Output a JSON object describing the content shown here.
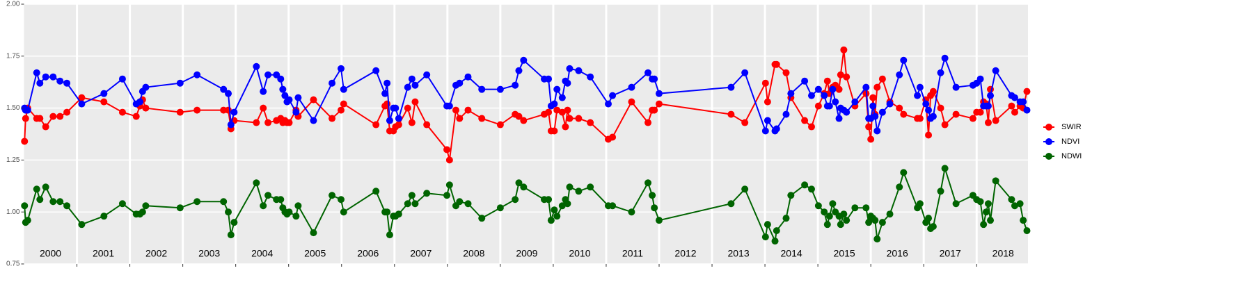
{
  "chart_data": {
    "type": "line",
    "x": [
      2000.01,
      2000.03,
      2000.07,
      2000.24,
      2000.3,
      2000.41,
      2000.55,
      2000.68,
      2000.81,
      2001.09,
      2001.51,
      2001.86,
      2002.12,
      2002.19,
      2002.24,
      2002.3,
      2002.95,
      2003.27,
      2003.77,
      2003.86,
      2003.91,
      2003.97,
      2004.39,
      2004.52,
      2004.61,
      2004.77,
      2004.85,
      2004.89,
      2004.93,
      2004.97,
      2005.01,
      2005.14,
      2005.18,
      2005.47,
      2005.82,
      2005.99,
      2006.04,
      2006.65,
      2006.82,
      2006.86,
      2006.91,
      2006.98,
      2007.02,
      2007.08,
      2007.25,
      2007.33,
      2007.39,
      2007.61,
      2007.99,
      2008.04,
      2008.16,
      2008.23,
      2008.39,
      2008.65,
      2009.0,
      2009.28,
      2009.35,
      2009.44,
      2009.83,
      2009.91,
      2009.96,
      2010.02,
      2010.07,
      2010.17,
      2010.23,
      2010.27,
      2010.31,
      2010.48,
      2010.7,
      2011.04,
      2011.12,
      2011.48,
      2011.79,
      2011.87,
      2011.91,
      2012.0,
      2013.36,
      2013.62,
      2014.01,
      2014.05,
      2014.19,
      2014.22,
      2014.4,
      2014.49,
      2014.75,
      2014.88,
      2015.01,
      2015.12,
      2015.18,
      2015.22,
      2015.28,
      2015.33,
      2015.4,
      2015.43,
      2015.49,
      2015.54,
      2015.7,
      2015.91,
      2015.96,
      2016.0,
      2016.04,
      2016.08,
      2016.12,
      2016.22,
      2016.36,
      2016.54,
      2016.62,
      2016.88,
      2016.93,
      2017.04,
      2017.09,
      2017.13,
      2017.18,
      2017.32,
      2017.4,
      2017.61,
      2017.93,
      2018.0,
      2018.07,
      2018.13,
      2018.18,
      2018.22,
      2018.26,
      2018.36,
      2018.66,
      2018.72,
      2018.82,
      2018.88,
      2018.95
    ],
    "series": [
      {
        "name": "SWIR",
        "color": "#ff0000",
        "values": [
          1.34,
          1.45,
          1.5,
          1.45,
          1.45,
          1.41,
          1.46,
          1.46,
          1.48,
          1.55,
          1.53,
          1.48,
          1.46,
          1.51,
          1.54,
          1.5,
          1.48,
          1.49,
          1.49,
          1.49,
          1.4,
          1.44,
          1.43,
          1.5,
          1.43,
          1.44,
          1.45,
          1.43,
          1.44,
          1.43,
          1.43,
          1.49,
          1.46,
          1.54,
          1.45,
          1.49,
          1.52,
          1.42,
          1.51,
          1.52,
          1.39,
          1.39,
          1.41,
          1.42,
          1.5,
          1.43,
          1.53,
          1.42,
          1.3,
          1.25,
          1.49,
          1.45,
          1.49,
          1.45,
          1.42,
          1.47,
          1.46,
          1.44,
          1.47,
          1.48,
          1.39,
          1.39,
          1.49,
          1.48,
          1.41,
          1.49,
          1.45,
          1.45,
          1.43,
          1.35,
          1.36,
          1.53,
          1.43,
          1.49,
          1.49,
          1.52,
          1.47,
          1.43,
          1.62,
          1.53,
          1.71,
          1.71,
          1.67,
          1.55,
          1.44,
          1.41,
          1.51,
          1.57,
          1.63,
          1.57,
          1.6,
          1.61,
          1.59,
          1.66,
          1.78,
          1.65,
          1.51,
          1.57,
          1.41,
          1.35,
          1.55,
          1.47,
          1.6,
          1.64,
          1.53,
          1.5,
          1.47,
          1.45,
          1.45,
          1.54,
          1.37,
          1.56,
          1.58,
          1.5,
          1.42,
          1.47,
          1.45,
          1.48,
          1.48,
          1.53,
          1.52,
          1.43,
          1.59,
          1.44,
          1.51,
          1.48,
          1.51,
          1.5,
          1.58
        ]
      },
      {
        "name": "NDVI",
        "color": "#0000ff",
        "values": [
          1.5,
          1.49,
          1.49,
          1.67,
          1.62,
          1.65,
          1.65,
          1.63,
          1.62,
          1.52,
          1.57,
          1.64,
          1.52,
          1.53,
          1.58,
          1.6,
          1.62,
          1.66,
          1.59,
          1.57,
          1.42,
          1.48,
          1.7,
          1.58,
          1.66,
          1.66,
          1.64,
          1.59,
          1.56,
          1.53,
          1.54,
          1.48,
          1.55,
          1.44,
          1.62,
          1.69,
          1.59,
          1.68,
          1.57,
          1.62,
          1.44,
          1.5,
          1.5,
          1.45,
          1.6,
          1.64,
          1.61,
          1.66,
          1.51,
          1.51,
          1.61,
          1.62,
          1.65,
          1.59,
          1.59,
          1.61,
          1.68,
          1.73,
          1.64,
          1.64,
          1.51,
          1.52,
          1.59,
          1.55,
          1.63,
          1.62,
          1.69,
          1.68,
          1.65,
          1.52,
          1.56,
          1.6,
          1.67,
          1.64,
          1.64,
          1.57,
          1.6,
          1.67,
          1.39,
          1.44,
          1.39,
          1.4,
          1.47,
          1.57,
          1.63,
          1.56,
          1.59,
          1.56,
          1.51,
          1.51,
          1.59,
          1.53,
          1.45,
          1.5,
          1.49,
          1.48,
          1.53,
          1.6,
          1.45,
          1.45,
          1.51,
          1.46,
          1.39,
          1.48,
          1.52,
          1.66,
          1.73,
          1.56,
          1.6,
          1.52,
          1.49,
          1.45,
          1.46,
          1.67,
          1.74,
          1.6,
          1.61,
          1.62,
          1.64,
          1.51,
          1.51,
          1.51,
          1.56,
          1.68,
          1.56,
          1.55,
          1.53,
          1.53,
          1.49
        ]
      },
      {
        "name": "NDWI",
        "color": "#006400",
        "values": [
          1.03,
          0.95,
          0.96,
          1.11,
          1.06,
          1.12,
          1.05,
          1.05,
          1.03,
          0.94,
          0.98,
          1.04,
          0.99,
          0.99,
          1.0,
          1.03,
          1.02,
          1.05,
          1.05,
          1.0,
          0.89,
          0.95,
          1.14,
          1.03,
          1.08,
          1.06,
          1.06,
          1.02,
          1.0,
          0.99,
          1.0,
          0.98,
          1.03,
          0.9,
          1.08,
          1.06,
          1.0,
          1.1,
          1.0,
          1.0,
          0.89,
          0.98,
          0.98,
          0.99,
          1.04,
          1.08,
          1.04,
          1.09,
          1.08,
          1.13,
          1.03,
          1.05,
          1.04,
          0.97,
          1.02,
          1.06,
          1.14,
          1.12,
          1.06,
          1.06,
          0.96,
          1.01,
          0.98,
          1.03,
          1.06,
          1.04,
          1.12,
          1.1,
          1.12,
          1.03,
          1.03,
          1.0,
          1.14,
          1.08,
          1.02,
          0.96,
          1.04,
          1.11,
          0.88,
          0.94,
          0.86,
          0.91,
          0.97,
          1.08,
          1.13,
          1.11,
          1.03,
          1.0,
          0.94,
          0.98,
          1.04,
          1.0,
          0.98,
          0.94,
          0.99,
          0.96,
          1.02,
          1.02,
          0.95,
          0.98,
          0.97,
          0.96,
          0.87,
          0.95,
          0.99,
          1.12,
          1.19,
          1.02,
          1.04,
          0.95,
          0.97,
          0.92,
          0.93,
          1.1,
          1.21,
          1.04,
          1.08,
          1.06,
          1.05,
          0.94,
          1.0,
          1.04,
          0.96,
          1.15,
          1.06,
          1.03,
          1.04,
          0.96,
          0.91
        ]
      }
    ],
    "year_labels": [
      "2000",
      "2001",
      "2002",
      "2003",
      "2004",
      "2005",
      "2006",
      "2007",
      "2008",
      "2009",
      "2010",
      "2011",
      "2012",
      "2013",
      "2014",
      "2015",
      "2016",
      "2017",
      "2018"
    ],
    "xlim": [
      2000,
      2018.97
    ],
    "xticks": [
      2001,
      2002,
      2003,
      2004,
      2005,
      2006,
      2007,
      2008,
      2009,
      2010,
      2011,
      2012,
      2013,
      2014,
      2015,
      2016,
      2017,
      2018
    ],
    "ylim": [
      0.75,
      2.0
    ],
    "yticks": [
      0.75,
      {
        "value": 1.0,
        "label": "1.00"
      },
      1.25,
      {
        "value": 1.5,
        "label": "1.50"
      },
      1.75,
      {
        "value": 2.0,
        "label": "2.00"
      }
    ],
    "grid": true,
    "legend": "right"
  }
}
